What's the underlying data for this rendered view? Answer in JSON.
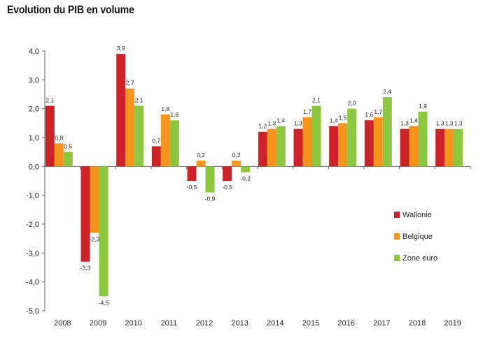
{
  "chart_data": {
    "type": "bar",
    "title": "Evolution du PIB en volume",
    "categories": [
      "2008",
      "2009",
      "2010",
      "2011",
      "2012",
      "2013",
      "2014",
      "2015",
      "2016",
      "2017",
      "2018",
      "2019"
    ],
    "series": [
      {
        "name": "Wallonie",
        "color": "#cc2229",
        "values": [
          2.1,
          -3.3,
          3.9,
          0.7,
          -0.5,
          -0.5,
          1.2,
          1.3,
          1.4,
          1.6,
          1.3,
          1.3
        ]
      },
      {
        "name": "Belgique",
        "color": "#f7941d",
        "values": [
          0.8,
          -2.3,
          2.7,
          1.8,
          0.2,
          0.2,
          1.3,
          1.7,
          1.5,
          1.7,
          1.4,
          1.3
        ]
      },
      {
        "name": "Zone euro",
        "color": "#8dc63f",
        "values": [
          0.5,
          -4.5,
          2.1,
          1.6,
          -0.9,
          -0.2,
          1.4,
          2.1,
          2.0,
          2.4,
          1.9,
          1.3
        ]
      }
    ],
    "data_labels": [
      [
        "2,1",
        "-3,3",
        "3,9",
        "0,7",
        "-0,5",
        "-0,5",
        "1,2",
        "1,3",
        "1,4",
        "1,6",
        "1,3",
        "1,3"
      ],
      [
        "0,8",
        "-2,3",
        "2,7",
        "1,8",
        "0,2",
        "0,2",
        "1,3",
        "1,7",
        "1,5",
        "1,7",
        "1,4",
        "1,3"
      ],
      [
        "0,5",
        "-4,5",
        "2,1",
        "1,6",
        "-0,9",
        "-0,2",
        "1,4",
        "2,1",
        "2,0",
        "2,4",
        "1,9",
        "1,3"
      ]
    ],
    "ylim": [
      -5.0,
      4.0
    ],
    "yticks": [
      4.0,
      3.0,
      2.0,
      1.0,
      0.0,
      -1.0,
      -2.0,
      -3.0,
      -4.0,
      -5.0
    ],
    "ytick_labels": [
      "4,0",
      "3,0",
      "2,0",
      "1,0",
      "0,0",
      "-1,0",
      "-2,0",
      "-3,0",
      "-4,0",
      "-5,0"
    ],
    "xlabel": "",
    "ylabel": "",
    "grid": false,
    "legend_position": "right"
  }
}
